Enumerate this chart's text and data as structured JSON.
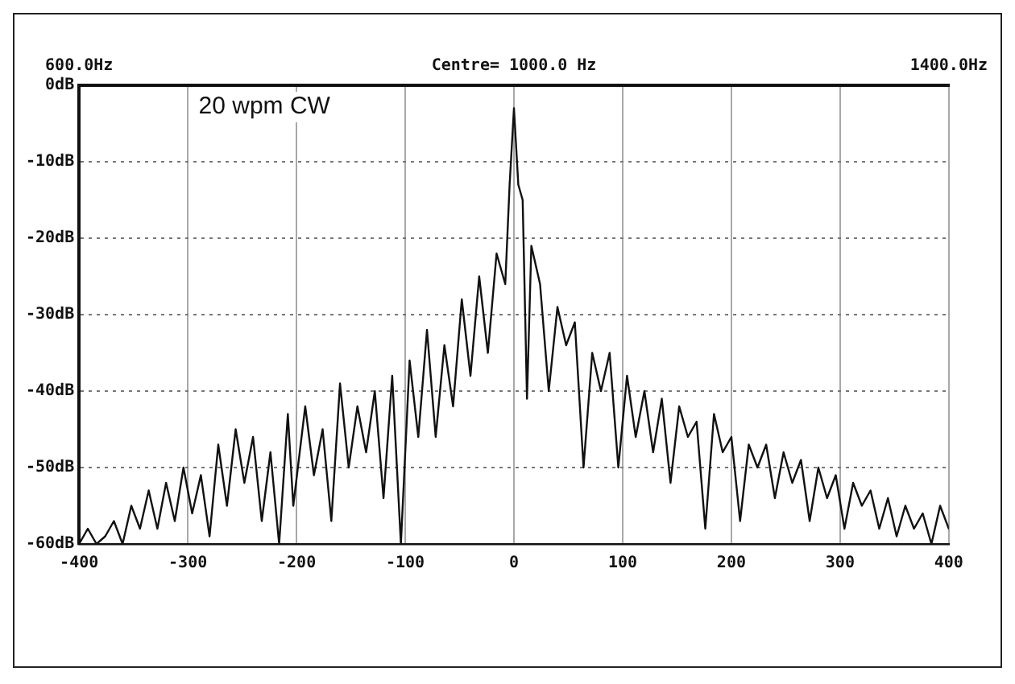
{
  "chart_data": {
    "type": "line",
    "annotations": [
      "20 wpm CW"
    ],
    "x": [
      -400,
      -392,
      -384,
      -376,
      -368,
      -360,
      -352,
      -344,
      -336,
      -328,
      -320,
      -312,
      -304,
      -296,
      -288,
      -280,
      -272,
      -264,
      -256,
      -248,
      -240,
      -232,
      -224,
      -216,
      -208,
      -203,
      -192,
      -184,
      -176,
      -168,
      -160,
      -152,
      -144,
      -136,
      -128,
      -120,
      -112,
      -104,
      -96,
      -88,
      -80,
      -72,
      -64,
      -56,
      -48,
      -40,
      -32,
      -24,
      -16,
      -8,
      -4,
      0,
      4,
      8,
      12,
      16,
      24,
      32,
      40,
      48,
      56,
      64,
      72,
      80,
      88,
      96,
      104,
      112,
      120,
      128,
      136,
      144,
      152,
      160,
      168,
      176,
      184,
      192,
      200,
      208,
      216,
      224,
      232,
      240,
      248,
      256,
      264,
      272,
      280,
      288,
      296,
      304,
      312,
      320,
      328,
      336,
      344,
      352,
      360,
      368,
      376,
      384,
      392,
      400
    ],
    "series": [
      {
        "color": "#111111",
        "values": [
          -60,
          -58,
          -60,
          -59,
          -57,
          -60,
          -55,
          -58,
          -53,
          -58,
          -52,
          -57,
          -50,
          -56,
          -51,
          -59,
          -47,
          -55,
          -45,
          -52,
          -46,
          -57,
          -48,
          -60,
          -43,
          -55,
          -42,
          -51,
          -45,
          -57,
          -39,
          -50,
          -42,
          -48,
          -40,
          -54,
          -38,
          -60,
          -36,
          -46,
          -32,
          -46,
          -34,
          -42,
          -28,
          -38,
          -25,
          -35,
          -22,
          -26,
          -13,
          -3,
          -13,
          -15,
          -41,
          -21,
          -26,
          -40,
          -29,
          -34,
          -31,
          -50,
          -35,
          -40,
          -35,
          -50,
          -38,
          -46,
          -40,
          -48,
          -41,
          -52,
          -42,
          -46,
          -44,
          -58,
          -43,
          -48,
          -46,
          -57,
          -47,
          -50,
          -47,
          -54,
          -48,
          -52,
          -49,
          -57,
          -50,
          -54,
          -51,
          -58,
          -52,
          -55,
          -53,
          -58,
          -54,
          -59,
          -55,
          -58,
          -56,
          -60,
          -55,
          -58
        ]
      }
    ],
    "xlim": [
      -400,
      400
    ],
    "xticks": [
      -400,
      -300,
      -200,
      -100,
      0,
      100,
      200,
      300,
      400
    ],
    "ylim": [
      -60,
      0
    ],
    "yticks": [
      {
        "value": 0,
        "label": "0dB"
      },
      {
        "value": -10,
        "label": "-10dB"
      },
      {
        "value": -20,
        "label": "-20dB"
      },
      {
        "value": -30,
        "label": "-30dB"
      },
      {
        "value": -40,
        "label": "-40dB"
      },
      {
        "value": -50,
        "label": "-50dB"
      },
      {
        "value": -60,
        "label": "-60dB"
      }
    ],
    "x2lim": [
      600,
      1400
    ],
    "x2ticks": [
      {
        "value": 600,
        "label": "600.0Hz"
      },
      {
        "value": 1000,
        "label": "Centre= 1000.0 Hz"
      },
      {
        "value": 1400,
        "label": "1400.0Hz"
      }
    ],
    "grid": true,
    "marker": "none",
    "line_style": "solid"
  }
}
